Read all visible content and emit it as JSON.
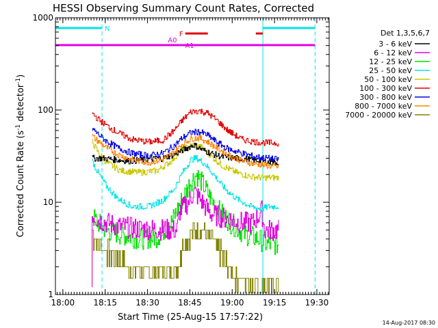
{
  "chart_data": {
    "type": "line",
    "title": "HESSI Observing Summary Count Rates, Corrected",
    "xlabel": "Start Time (25-Aug-15 17:57:22)",
    "ylabel_main": "Corrected Count Rate (s",
    "ylabel_sup1": "-1",
    "ylabel_mid": " detector",
    "ylabel_sup2": "-1",
    "ylabel_end": ")",
    "x_tick_labels": [
      "18:00",
      "18:15",
      "18:30",
      "18:45",
      "19:00",
      "19:15",
      "19:30"
    ],
    "x_tick_minutes": [
      2.63,
      17.63,
      32.63,
      47.63,
      62.63,
      77.63,
      92.63
    ],
    "y_tick_labels": [
      "1",
      "10",
      "100",
      "1000"
    ],
    "y_tick_values": [
      1,
      10,
      100,
      1000
    ],
    "ylim": [
      1,
      1000
    ],
    "xlim_minutes": [
      0,
      97
    ],
    "y_scale": "log",
    "legend_title": "Det 1,3,5,6,7",
    "legend_position": "right",
    "footer_timestamp": "14-Aug-2017 08:30",
    "flags": [
      {
        "label": "N",
        "color": "#00e5e5",
        "segments": [
          [
            0,
            16.5
          ],
          [
            73.5,
            92
          ]
        ]
      },
      {
        "label": "F",
        "color": "#e00000",
        "segments": [
          [
            46,
            54
          ],
          [
            71,
            73.5
          ]
        ]
      },
      {
        "label": "A0",
        "color": "#e000e0",
        "segments": [
          [
            0,
            44
          ]
        ]
      },
      {
        "label": "A1",
        "color": "#e000e0",
        "segments": [
          [
            44,
            92
          ]
        ]
      }
    ],
    "flag_vlines_minutes": [
      0,
      16.5,
      73.5,
      92
    ],
    "series": [
      {
        "name": "3 - 6 keV",
        "color": "#000000",
        "points": [
          [
            13,
            30
          ],
          [
            17,
            30
          ],
          [
            21,
            29
          ],
          [
            26,
            28
          ],
          [
            32,
            29
          ],
          [
            38,
            30
          ],
          [
            42,
            33
          ],
          [
            46,
            38
          ],
          [
            49,
            42
          ],
          [
            52,
            37
          ],
          [
            55,
            34
          ],
          [
            59,
            31
          ],
          [
            64,
            30
          ],
          [
            69,
            29
          ],
          [
            73,
            28
          ],
          [
            76,
            27
          ],
          [
            79,
            27
          ]
        ]
      },
      {
        "name": "6 - 12 keV",
        "color": "#e000e0",
        "points": [
          [
            13,
            7.5
          ],
          [
            15,
            6.5
          ],
          [
            18,
            6
          ],
          [
            22,
            5.5
          ],
          [
            28,
            5.2
          ],
          [
            35,
            5.1
          ],
          [
            43,
            5
          ],
          [
            44,
            8
          ],
          [
            47,
            10
          ],
          [
            49,
            13
          ],
          [
            51,
            11
          ],
          [
            53,
            9
          ],
          [
            55,
            7.5
          ],
          [
            58,
            7
          ],
          [
            62,
            6.5
          ],
          [
            66,
            6
          ],
          [
            70,
            6
          ],
          [
            73,
            8
          ],
          [
            74,
            5
          ],
          [
            78,
            5
          ],
          [
            79,
            5
          ]
        ]
      },
      {
        "name": "12 - 25 keV",
        "color": "#00e000",
        "points": [
          [
            13,
            7
          ],
          [
            15,
            6
          ],
          [
            18,
            5
          ],
          [
            23,
            4.5
          ],
          [
            30,
            4
          ],
          [
            36,
            4.2
          ],
          [
            41,
            6
          ],
          [
            45,
            11
          ],
          [
            48,
            17
          ],
          [
            50,
            20
          ],
          [
            52,
            16
          ],
          [
            55,
            11
          ],
          [
            58,
            8
          ],
          [
            62,
            6
          ],
          [
            67,
            4.5
          ],
          [
            72,
            4
          ],
          [
            75,
            3.5
          ],
          [
            79,
            3.5
          ]
        ]
      },
      {
        "name": "25 - 50 keV",
        "color": "#00e5e5",
        "points": [
          [
            13,
            28
          ],
          [
            15,
            21
          ],
          [
            18,
            15
          ],
          [
            22,
            11
          ],
          [
            27,
            9
          ],
          [
            33,
            9
          ],
          [
            38,
            10.5
          ],
          [
            42,
            14
          ],
          [
            45,
            21
          ],
          [
            48,
            29
          ],
          [
            50,
            30
          ],
          [
            53,
            26
          ],
          [
            56,
            20
          ],
          [
            60,
            14
          ],
          [
            64,
            11
          ],
          [
            69,
            9
          ],
          [
            73,
            8.5
          ],
          [
            76,
            9
          ],
          [
            79,
            9
          ]
        ]
      },
      {
        "name": "50 - 100 keV",
        "color": "#c8c800",
        "points": [
          [
            13,
            45
          ],
          [
            15,
            35
          ],
          [
            18,
            27
          ],
          [
            23,
            22
          ],
          [
            30,
            21
          ],
          [
            36,
            22
          ],
          [
            41,
            28
          ],
          [
            45,
            38
          ],
          [
            49,
            42
          ],
          [
            52,
            39
          ],
          [
            55,
            32
          ],
          [
            59,
            25
          ],
          [
            64,
            21
          ],
          [
            69,
            19
          ],
          [
            73,
            18.5
          ],
          [
            79,
            18.5
          ]
        ]
      },
      {
        "name": "100 - 300 keV",
        "color": "#e00000",
        "points": [
          [
            13,
            92
          ],
          [
            15,
            80
          ],
          [
            18,
            68
          ],
          [
            22,
            57
          ],
          [
            27,
            48
          ],
          [
            33,
            45
          ],
          [
            38,
            47
          ],
          [
            42,
            60
          ],
          [
            45,
            78
          ],
          [
            48,
            96
          ],
          [
            51,
            98
          ],
          [
            54,
            92
          ],
          [
            57,
            78
          ],
          [
            61,
            60
          ],
          [
            66,
            48
          ],
          [
            71,
            45
          ],
          [
            75,
            44
          ],
          [
            79,
            44
          ]
        ]
      },
      {
        "name": "300 - 800 keV",
        "color": "#0000e0",
        "points": [
          [
            13,
            63
          ],
          [
            15,
            55
          ],
          [
            18,
            46
          ],
          [
            22,
            39
          ],
          [
            27,
            34
          ],
          [
            33,
            32
          ],
          [
            38,
            34
          ],
          [
            42,
            41
          ],
          [
            45,
            50
          ],
          [
            48,
            57
          ],
          [
            51,
            58
          ],
          [
            54,
            53
          ],
          [
            57,
            45
          ],
          [
            61,
            38
          ],
          [
            66,
            34
          ],
          [
            71,
            31
          ],
          [
            75,
            30
          ],
          [
            79,
            29
          ]
        ]
      },
      {
        "name": "800 - 7000 keV",
        "color": "#ff8000",
        "points": [
          [
            13,
            52
          ],
          [
            15,
            46
          ],
          [
            18,
            39
          ],
          [
            22,
            33
          ],
          [
            27,
            29
          ],
          [
            33,
            27
          ],
          [
            38,
            29
          ],
          [
            42,
            35
          ],
          [
            45,
            43
          ],
          [
            48,
            49
          ],
          [
            51,
            50
          ],
          [
            54,
            45
          ],
          [
            57,
            39
          ],
          [
            61,
            33
          ],
          [
            66,
            28
          ],
          [
            71,
            26
          ],
          [
            75,
            25
          ],
          [
            79,
            24
          ]
        ]
      },
      {
        "name": "7000 - 20000 keV",
        "color": "#808000",
        "points": [
          [
            13,
            4.5
          ],
          [
            15,
            3.5
          ],
          [
            18,
            3
          ],
          [
            22,
            2.5
          ],
          [
            27,
            1.8
          ],
          [
            31,
            1.8
          ],
          [
            35,
            1.8
          ],
          [
            39,
            1.8
          ],
          [
            43,
            2
          ],
          [
            46,
            4
          ],
          [
            49,
            5
          ],
          [
            52,
            5
          ],
          [
            55,
            4
          ],
          [
            58,
            3
          ],
          [
            61,
            2
          ],
          [
            65,
            1.5
          ],
          [
            69,
            1.3
          ],
          [
            73,
            1.3
          ],
          [
            77,
            1.3
          ],
          [
            79,
            1.3
          ]
        ]
      }
    ]
  }
}
